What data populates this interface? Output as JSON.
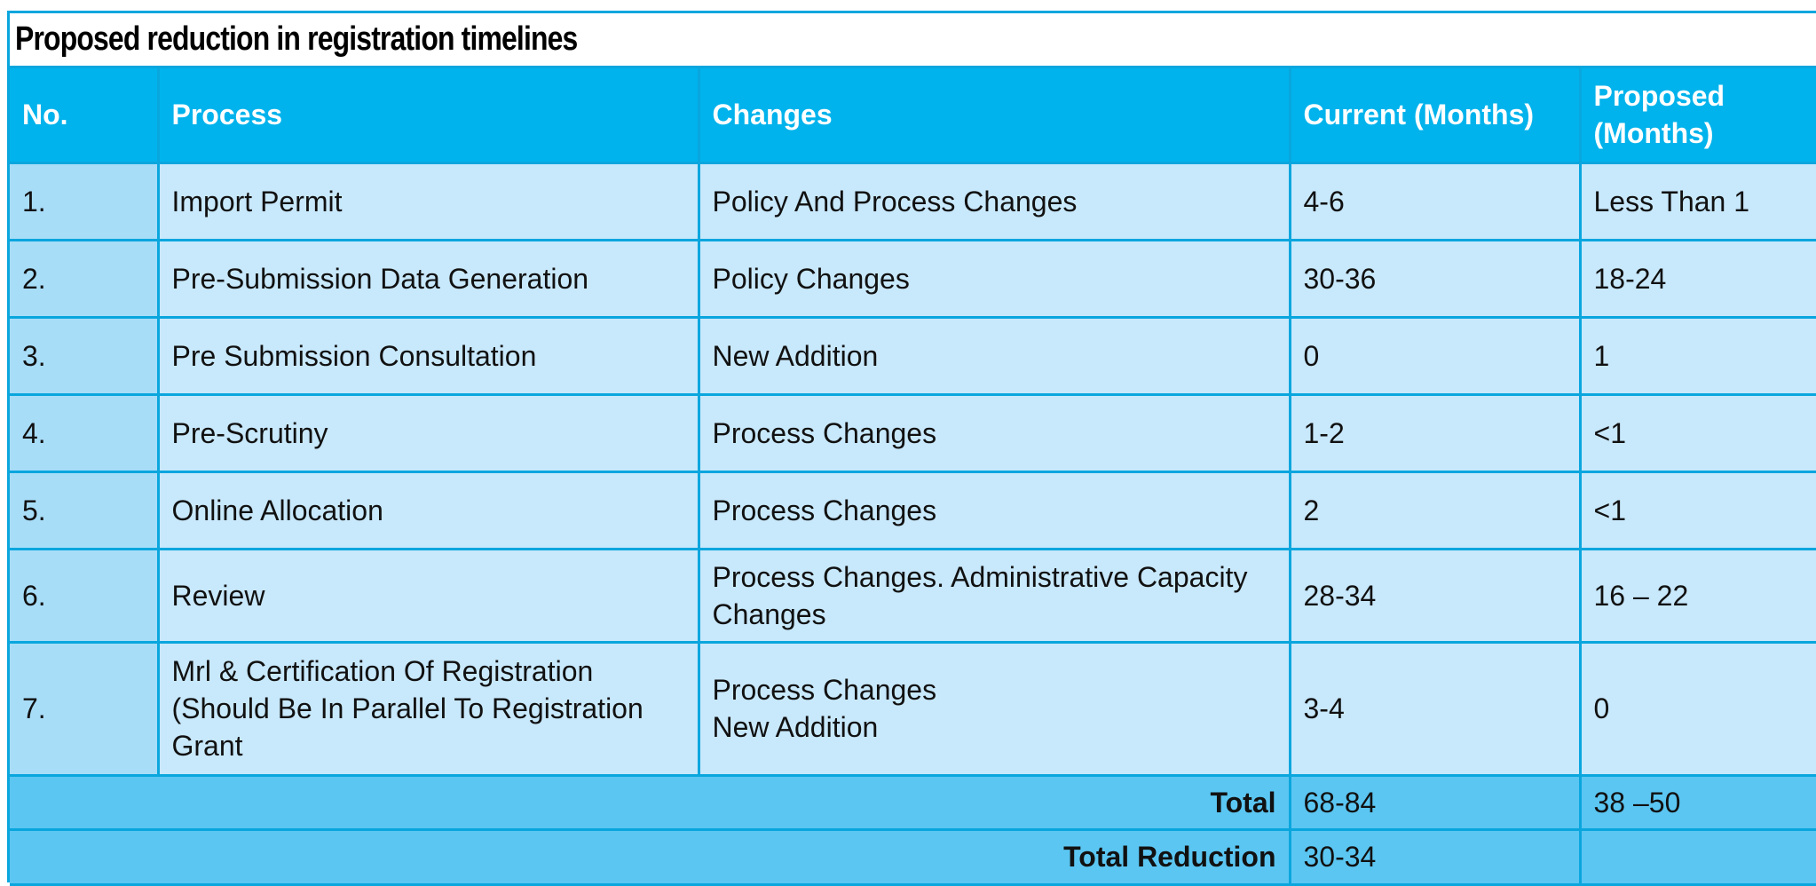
{
  "title": "Proposed reduction in registration timelines",
  "headers": {
    "no": "No.",
    "process": "Process",
    "changes": "Changes",
    "current": "Current (Months)",
    "proposed_line1": "Proposed",
    "proposed_line2": "(Months)"
  },
  "rows": [
    {
      "no": "1.",
      "process": [
        "Import Permit"
      ],
      "changes": [
        "Policy And Process Changes"
      ],
      "current": "4-6",
      "proposed": "Less Than 1"
    },
    {
      "no": "2.",
      "process": [
        "Pre-Submission Data Generation"
      ],
      "changes": [
        "Policy Changes"
      ],
      "current": "30-36",
      "proposed": "18-24"
    },
    {
      "no": "3.",
      "process": [
        "Pre Submission Consultation"
      ],
      "changes": [
        "New Addition"
      ],
      "current": "0",
      "proposed": "1"
    },
    {
      "no": "4.",
      "process": [
        "Pre-Scrutiny"
      ],
      "changes": [
        "Process Changes"
      ],
      "current": "1-2",
      "proposed": "<1"
    },
    {
      "no": "5.",
      "process": [
        "Online Allocation"
      ],
      "changes": [
        "Process Changes"
      ],
      "current": "2",
      "proposed": "<1"
    },
    {
      "no": "6.",
      "process": [
        "Review"
      ],
      "changes": [
        "Process Changes. Administrative Capacity",
        "Changes"
      ],
      "current": "28-34",
      "proposed": "16 – 22"
    },
    {
      "no": "7.",
      "process": [
        "Mrl & Certification Of Registration",
        "(Should Be In Parallel To Registration",
        "Grant"
      ],
      "changes": [
        "Process Changes",
        "New Addition"
      ],
      "current": "3-4",
      "proposed": "0"
    }
  ],
  "totals": {
    "total_label": "Total",
    "total_current": "68-84",
    "total_proposed": "38 –50",
    "reduction_label": "Total Reduction",
    "reduction_value": "30-34"
  },
  "colors": {
    "border": "#0aa6de",
    "header_bg": "#00b3ec",
    "cell_bg": "#c8e8fb",
    "number_cell_bg": "#a8ddf8",
    "total_bg": "#5bc6f2"
  }
}
